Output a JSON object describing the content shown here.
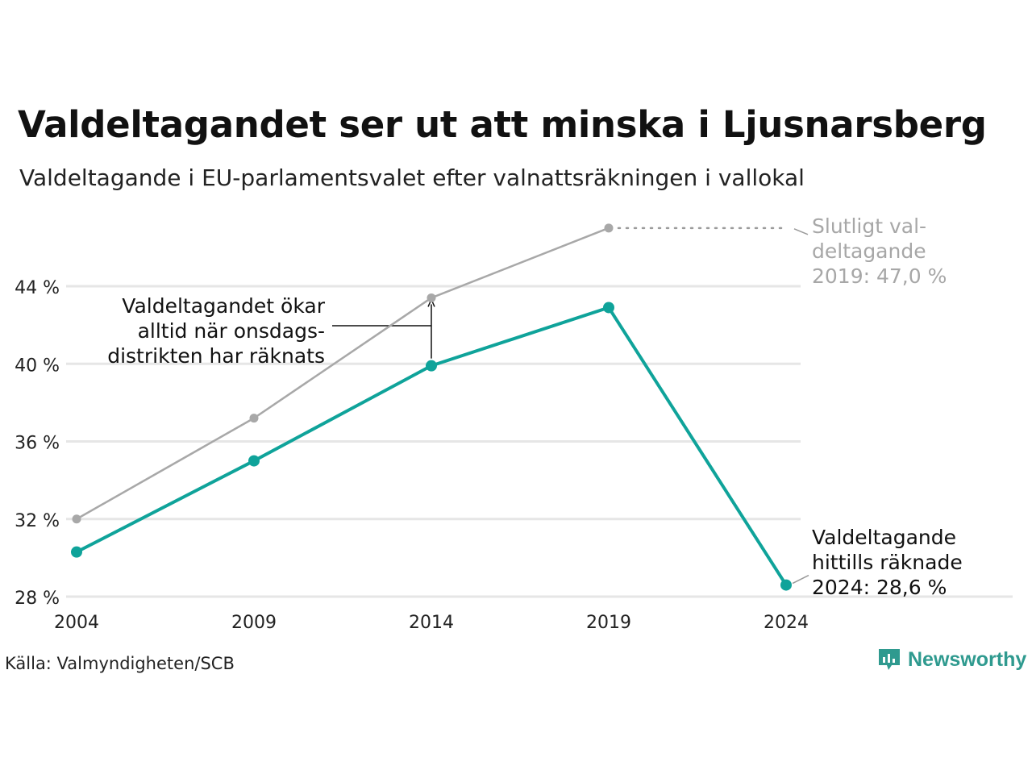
{
  "title": "Valdeltagandet ser ut att minska i Ljusnarsberg",
  "subtitle": "Valdeltagande i EU-parlamentsvalet efter valnattsräkningen i vallokal",
  "source": "Källa: Valmyndigheten/SCB",
  "brand": "Newsworthy",
  "colors": {
    "teal": "#0fa39a",
    "gray": "#a8a8a8",
    "grid": "#e6e6e6",
    "brand": "#2f9a8f"
  },
  "annotations": {
    "gray_label": [
      "Slutligt val-",
      "deltagande",
      "2019: 47,0 %"
    ],
    "teal_label": [
      "Valdeltagande",
      "hittills räknade",
      "2024: 28,6 %"
    ],
    "middle_label": [
      "Valdeltagandet ökar",
      "alltid när onsdags-",
      "distrikten har räknats"
    ]
  },
  "chart_data": {
    "type": "line",
    "x": [
      2004,
      2009,
      2014,
      2019,
      2024
    ],
    "y_tick_labels": [
      "28 %",
      "32 %",
      "36 %",
      "40 %",
      "44 %"
    ],
    "x_tick_labels": [
      "2004",
      "2009",
      "2014",
      "2019",
      "2024"
    ],
    "y_ticks": [
      28,
      32,
      36,
      40,
      44
    ],
    "ylim": [
      28,
      47
    ],
    "grid": true,
    "series": [
      {
        "name": "Slutligt valdeltagande",
        "color": "#a8a8a8",
        "values": [
          32.0,
          37.2,
          43.4,
          47.0,
          null
        ]
      },
      {
        "name": "Valdeltagande hittills räknade",
        "color": "#0fa39a",
        "values": [
          30.3,
          35.0,
          39.9,
          42.9,
          28.6
        ]
      }
    ]
  }
}
